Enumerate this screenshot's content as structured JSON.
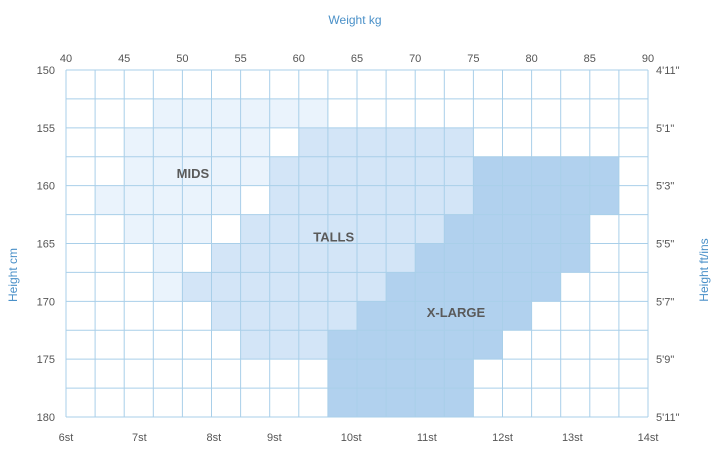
{
  "chart_data": {
    "type": "heatmap",
    "x_top": {
      "label": "Weight kg",
      "range": [
        40,
        90
      ],
      "ticks": [
        40,
        45,
        50,
        55,
        60,
        65,
        70,
        75,
        80,
        85,
        90
      ]
    },
    "x_bottom": {
      "range_kg": [
        40,
        90
      ],
      "ticks": [
        {
          "label": "6st",
          "kg": 40
        },
        {
          "label": "7st",
          "kg": 46.3
        },
        {
          "label": "8st",
          "kg": 52.7
        },
        {
          "label": "9st",
          "kg": 57.9
        },
        {
          "label": "10st",
          "kg": 64.5
        },
        {
          "label": "11st",
          "kg": 71
        },
        {
          "label": "12st",
          "kg": 77.5
        },
        {
          "label": "13st",
          "kg": 83.5
        },
        {
          "label": "14st",
          "kg": 90
        }
      ]
    },
    "y_left": {
      "label": "Height cm",
      "range": [
        150,
        180
      ],
      "ticks": [
        150,
        155,
        160,
        165,
        170,
        175,
        180
      ]
    },
    "y_right": {
      "label": "Height ft/ins",
      "ticks": [
        {
          "label": "4'11\"",
          "cm": 150
        },
        {
          "label": "5'1\"",
          "cm": 155
        },
        {
          "label": "5'3\"",
          "cm": 160
        },
        {
          "label": "5'5\"",
          "cm": 165
        },
        {
          "label": "5'7\"",
          "cm": 170
        },
        {
          "label": "5'9\"",
          "cm": 175
        },
        {
          "label": "5'11\"",
          "cm": 180
        }
      ]
    },
    "grid": true,
    "cell_kg": 2.5,
    "cell_cm": 2.5,
    "regions": [
      {
        "name": "MIDS",
        "color": "#eaf3fc",
        "label_at": {
          "kg": 50.9,
          "cm": 159
        },
        "rows": [
          {
            "cm": [
              152.5,
              155
            ],
            "kg": [
              47.5,
              62.5
            ]
          },
          {
            "cm": [
              155,
              157.5
            ],
            "kg": [
              45,
              57.5
            ]
          },
          {
            "cm": [
              157.5,
              160
            ],
            "kg": [
              45,
              57.5
            ]
          },
          {
            "cm": [
              160,
              162.5
            ],
            "kg": [
              42.5,
              55
            ]
          },
          {
            "cm": [
              162.5,
              165
            ],
            "kg": [
              45,
              52.5
            ]
          },
          {
            "cm": [
              165,
              167.5
            ],
            "kg": [
              47.5,
              50
            ]
          },
          {
            "cm": [
              167.5,
              170
            ],
            "kg": [
              47.5,
              50
            ]
          }
        ]
      },
      {
        "name": "TALLS",
        "color": "#d3e5f7",
        "label_at": {
          "kg": 63,
          "cm": 164.5
        },
        "rows": [
          {
            "cm": [
              155,
              157.5
            ],
            "kg": [
              60,
              75
            ]
          },
          {
            "cm": [
              157.5,
              160
            ],
            "kg": [
              57.5,
              75
            ]
          },
          {
            "cm": [
              160,
              162.5
            ],
            "kg": [
              57.5,
              75
            ]
          },
          {
            "cm": [
              162.5,
              165
            ],
            "kg": [
              55,
              72.5
            ]
          },
          {
            "cm": [
              165,
              167.5
            ],
            "kg": [
              52.5,
              70
            ]
          },
          {
            "cm": [
              167.5,
              170
            ],
            "kg": [
              50,
              67.5
            ]
          },
          {
            "cm": [
              170,
              172.5
            ],
            "kg": [
              52.5,
              65
            ]
          },
          {
            "cm": [
              172.5,
              175
            ],
            "kg": [
              55,
              62.5
            ]
          }
        ]
      },
      {
        "name": "X-LARGE",
        "color": "#b1d1ee",
        "label_at": {
          "kg": 73.5,
          "cm": 171
        },
        "rows": [
          {
            "cm": [
              157.5,
              160
            ],
            "kg": [
              75,
              87.5
            ]
          },
          {
            "cm": [
              160,
              162.5
            ],
            "kg": [
              75,
              87.5
            ]
          },
          {
            "cm": [
              162.5,
              165
            ],
            "kg": [
              72.5,
              85
            ]
          },
          {
            "cm": [
              165,
              167.5
            ],
            "kg": [
              70,
              85
            ]
          },
          {
            "cm": [
              167.5,
              170
            ],
            "kg": [
              67.5,
              82.5
            ]
          },
          {
            "cm": [
              170,
              172.5
            ],
            "kg": [
              65,
              80
            ]
          },
          {
            "cm": [
              172.5,
              175
            ],
            "kg": [
              62.5,
              77.5
            ]
          },
          {
            "cm": [
              175,
              177.5
            ],
            "kg": [
              62.5,
              75
            ]
          },
          {
            "cm": [
              177.5,
              180
            ],
            "kg": [
              62.5,
              75
            ]
          }
        ]
      }
    ]
  },
  "colors": {
    "grid": "#a9cfe9",
    "axis_title": "#4a90c8",
    "tick_text": "#555555",
    "region_label": "#5a5a5a"
  }
}
